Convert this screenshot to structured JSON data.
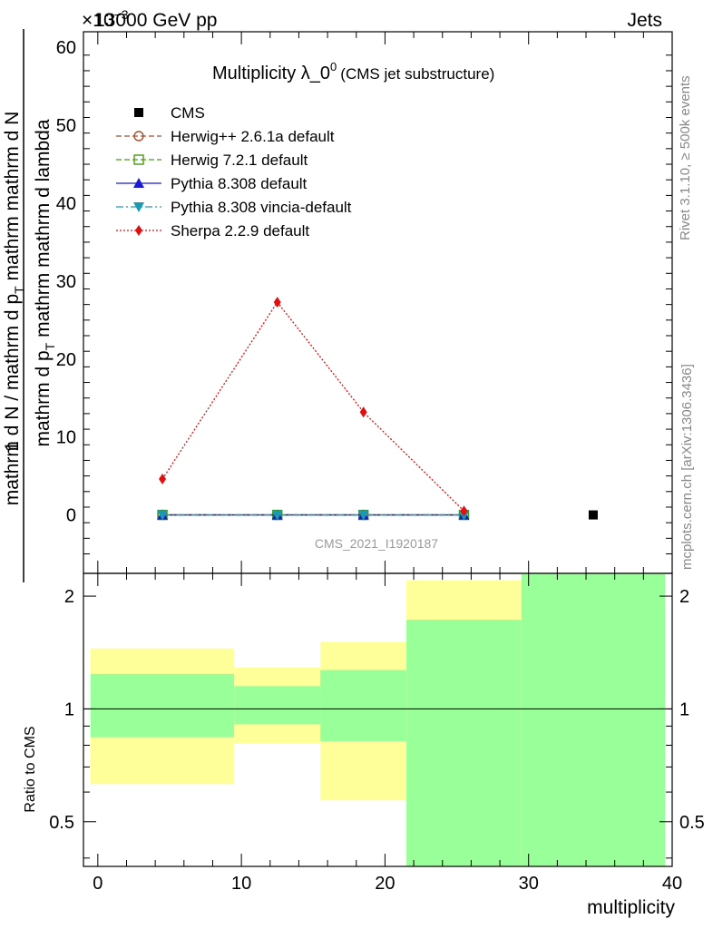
{
  "header": {
    "energy_label": "13000 GeV pp",
    "process_label": "Jets",
    "exponent_label": "×10",
    "exponent_power": "−3"
  },
  "side_labels": {
    "rivet": "Rivet 3.1.10, ≥ 500k events",
    "mcplots": "mcplots.cern.ch [arXiv:1306.3436]"
  },
  "chart_data": {
    "type": "line",
    "title_main": "Multiplicity λ_0",
    "title_sup": "0",
    "title_sub": "(CMS jet substructure)",
    "analysis_id": "CMS_2021_I1920187",
    "ylabel_numer": "1",
    "ylabel_numer_tail": "N",
    "ylabel_frac": "mathrm d",
    "ylabel_main_1": "mathrm d N / mathrm d p",
    "ylabel_main_2": "mathrm d p",
    "ylabel_main_3": "mathrm d p",
    "ylabel_main_4": "mathrm d lambda",
    "ylabel_sub": "T",
    "ylabel_mid": "mathrm d",
    "ylabel_mid2": "mathrm d",
    "ylabel_mid3": "mathrm",
    "ylabel_mid4": "mathrm",
    "xlabel": "multiplicity",
    "ratio_ylabel": "Ratio to CMS",
    "xlim": [
      -1,
      40
    ],
    "ylim": [
      -7.5,
      62
    ],
    "ratio_ylim": [
      0.38,
      2.3
    ],
    "x_ticks": [
      0,
      10,
      20,
      30,
      40
    ],
    "y_ticks": [
      0,
      10,
      20,
      30,
      40,
      50,
      60
    ],
    "ratio_ticks": [
      0.5,
      1,
      2
    ],
    "ratio_tick_labels": [
      "0.5",
      "1",
      "2"
    ],
    "series": [
      {
        "name": "CMS",
        "style": "data",
        "color": "#000000",
        "marker": "square",
        "x": [
          34.5
        ],
        "y": [
          0.0
        ]
      },
      {
        "name": "Herwig++ 2.6.1a default",
        "style": "dashed",
        "color": "#a0522d",
        "marker": "circle-open",
        "x": [
          4.5,
          12.5,
          18.5,
          25.5
        ],
        "y": [
          0.0,
          0.0,
          0.0,
          0.0
        ]
      },
      {
        "name": "Herwig 7.2.1 default",
        "style": "dashed",
        "color": "#4a9a1a",
        "marker": "square-open",
        "x": [
          4.5,
          12.5,
          18.5,
          25.5
        ],
        "y": [
          0.0,
          0.0,
          0.0,
          0.0
        ]
      },
      {
        "name": "Pythia 8.308 default",
        "style": "solid",
        "color": "#1a1ad0",
        "marker": "triangle-up",
        "x": [
          4.5,
          12.5,
          18.5,
          25.5
        ],
        "y": [
          0.0,
          0.0,
          0.0,
          0.0
        ]
      },
      {
        "name": "Pythia 8.308 vincia-default",
        "style": "dashdot",
        "color": "#1a9ab0",
        "marker": "triangle-down",
        "x": [
          4.5,
          12.5,
          18.5,
          25.5
        ],
        "y": [
          0.0,
          0.0,
          0.0,
          0.0
        ]
      },
      {
        "name": "Sherpa 2.2.9 default",
        "style": "dotted",
        "color": "#e01010",
        "marker": "diamond",
        "x": [
          4.5,
          12.5,
          18.5,
          25.5
        ],
        "y": [
          4.6,
          27.3,
          13.2,
          0.5
        ]
      }
    ],
    "ratio_bands": [
      {
        "x0": -0.5,
        "x1": 9.5,
        "yellow": [
          0.63,
          1.45
        ],
        "green": [
          0.84,
          1.24
        ]
      },
      {
        "x0": 9.5,
        "x1": 15.5,
        "yellow": [
          0.81,
          1.29
        ],
        "green": [
          0.91,
          1.15
        ]
      },
      {
        "x0": 15.5,
        "x1": 21.5,
        "yellow": [
          0.57,
          1.51
        ],
        "green": [
          0.82,
          1.27
        ]
      },
      {
        "x0": 21.5,
        "x1": 29.5,
        "yellow": [
          0.38,
          2.2
        ],
        "green": [
          0.38,
          1.73
        ]
      },
      {
        "x0": 29.5,
        "x1": 39.5,
        "yellow": [
          0.38,
          2.3
        ],
        "green": [
          0.38,
          2.3
        ]
      }
    ]
  },
  "colors": {
    "band_yellow": "#ffff99",
    "band_green": "#99ff99"
  }
}
